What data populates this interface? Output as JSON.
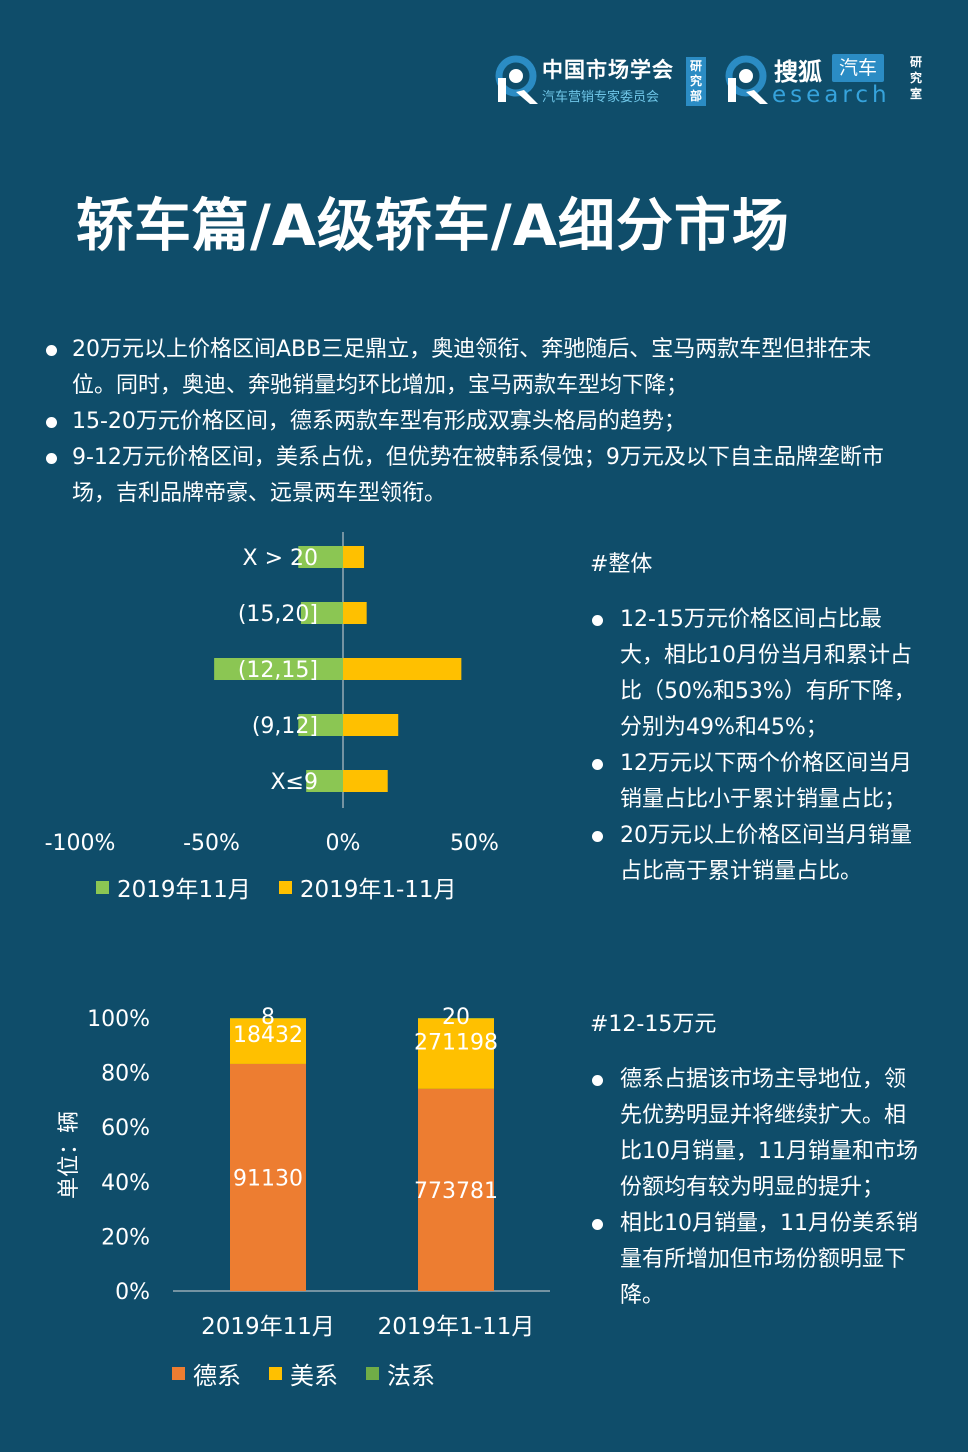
{
  "logos": {
    "csma": {
      "name": "中国市场学会",
      "sub": "汽车营销专家委员会",
      "unit": [
        "研",
        "究",
        "部"
      ]
    },
    "sohu": {
      "name": "搜狐",
      "badge": "汽车",
      "sub": "esearch",
      "unit": [
        "研",
        "究",
        "室"
      ]
    }
  },
  "title": "轿车篇/A级轿车/A细分市场",
  "intro": [
    "20万元以上价格区间ABB三足鼎立，奥迪领衔、奔驰随后、宝马两款车型但排在末位。同时，奥迪、奔驰销量均环比增加，宝马两款车型均下降；",
    "15-20万元价格区间，德系两款车型有形成双寡头格局的趋势；",
    "9-12万元价格区间，美系占优，但优势在被韩系侵蚀；9万元及以下自主品牌垄断市场，吉利品牌帝豪、远景两车型领衔。"
  ],
  "colors": {
    "green": "#8bc653",
    "yellow": "#ffc000",
    "orange": "#ed7d31",
    "legend_green": "#70ad47",
    "bg": "#0f4d6a"
  },
  "chart_data": [
    {
      "type": "bar",
      "orientation": "horizontal",
      "categories": [
        "X > 20",
        "(15,20]",
        "(12,15]",
        "(9,12]",
        "X≤9"
      ],
      "series": [
        {
          "name": "2019年11月",
          "values": [
            -17,
            -16,
            -49,
            -17,
            -14
          ]
        },
        {
          "name": "2019年1-11月",
          "values": [
            8,
            9,
            45,
            21,
            17
          ]
        }
      ],
      "xlim": [
        -100,
        50
      ],
      "xticks": [
        "-100%",
        "-50%",
        "0%",
        "50%"
      ]
    },
    {
      "type": "bar",
      "stacked": "percent",
      "categories": [
        "2019年11月",
        "2019年1-11月"
      ],
      "series": [
        {
          "name": "德系",
          "values": [
            91130,
            773781
          ]
        },
        {
          "name": "美系",
          "values": [
            18432,
            271198
          ]
        },
        {
          "name": "法系",
          "values": [
            8,
            20
          ]
        }
      ],
      "yticks": [
        "0%",
        "20%",
        "40%",
        "60%",
        "80%",
        "100%"
      ],
      "ylabel": "单位：辆"
    }
  ],
  "panel1": {
    "tag": "#整体",
    "bullets": [
      "12-15万元价格区间占比最大，相比10月份当月和累计占比（50%和53%）有所下降，分别为49%和45%；",
      "12万元以下两个价格区间当月销量占比小于累计销量占比；",
      "20万元以上价格区间当月销量占比高于累计销量占比。"
    ]
  },
  "panel2": {
    "tag": "#12-15万元",
    "bullets": [
      "德系占据该市场主导地位，领先优势明显并将继续扩大。相比10月销量，11月销量和市场份额均有较为明显的提升；",
      "相比10月销量，11月份美系销量有所增加但市场份额明显下降。"
    ]
  }
}
